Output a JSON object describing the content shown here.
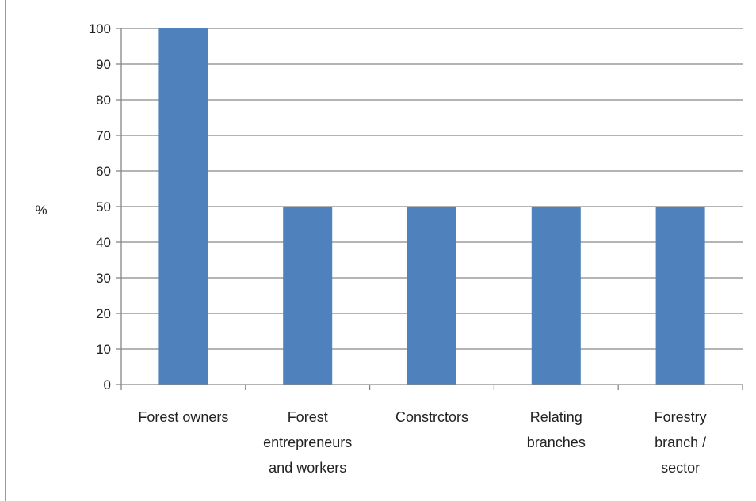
{
  "chart_data": {
    "type": "bar",
    "categories": [
      [
        "Forest owners"
      ],
      [
        "Forest",
        "entrepreneurs",
        "and workers"
      ],
      [
        "Constrctors"
      ],
      [
        "Relating",
        "branches"
      ],
      [
        "Forestry",
        "branch /",
        "sector"
      ]
    ],
    "values": [
      100,
      50,
      50,
      50,
      50
    ],
    "ylabel": "%",
    "xlabel": "",
    "title": "",
    "ylim": [
      0,
      100
    ],
    "yticks": [
      0,
      10,
      20,
      30,
      40,
      50,
      60,
      70,
      80,
      90,
      100
    ],
    "grid": "horizontal",
    "legend": "none",
    "bar_color": "#4f81bd",
    "grid_color": "#868686"
  }
}
